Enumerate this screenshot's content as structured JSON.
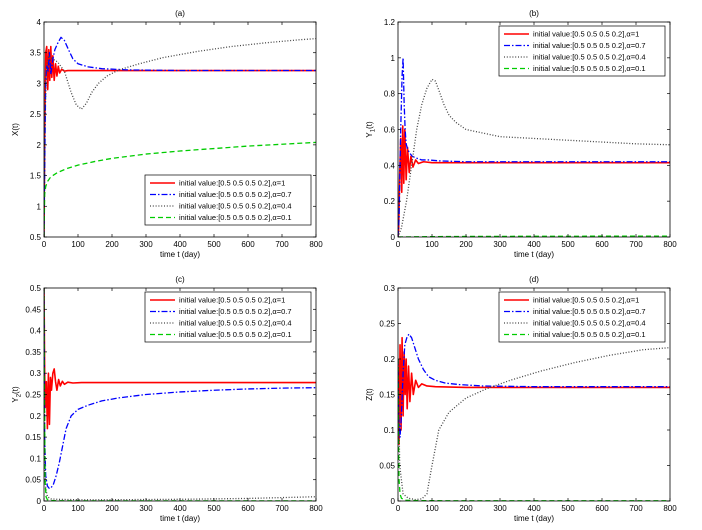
{
  "chart_data": [
    {
      "type": "line",
      "title": "(a)",
      "xlabel": "time t (day)",
      "ylabel": "X(t)",
      "xlim": [
        0,
        800
      ],
      "ylim": [
        0.5,
        4
      ],
      "xticks": [
        0,
        100,
        200,
        300,
        400,
        500,
        600,
        700,
        800
      ],
      "yticks": [
        0.5,
        1,
        1.5,
        2,
        2.5,
        3,
        3.5,
        4
      ],
      "legend_pos": "bottom-right",
      "series": [
        {
          "name": "initial value:[0.5 0.5 0.5 0.2],α=1",
          "color": "#ff0000",
          "style": "solid",
          "x": [
            0,
            2,
            5,
            8,
            11,
            14,
            17,
            20,
            23,
            26,
            30,
            34,
            38,
            42,
            46,
            52,
            60,
            70,
            90,
            120,
            200,
            800
          ],
          "y": [
            0.5,
            2.2,
            3.5,
            3.6,
            2.9,
            3.55,
            3.05,
            3.6,
            3.1,
            3.45,
            3.05,
            3.32,
            3.12,
            3.28,
            3.17,
            3.23,
            3.2,
            3.21,
            3.21,
            3.21,
            3.21,
            3.21
          ]
        },
        {
          "name": "initial value:[0.5 0.5 0.5 0.2],α=0.7",
          "color": "#0000ff",
          "style": "dashdot",
          "x": [
            0,
            2,
            5,
            8,
            12,
            16,
            20,
            26,
            32,
            40,
            50,
            60,
            72,
            85,
            100,
            130,
            170,
            250,
            400,
            600,
            800
          ],
          "y": [
            0.5,
            1.6,
            3.0,
            3.3,
            3.2,
            3.5,
            3.15,
            3.4,
            3.55,
            3.65,
            3.75,
            3.7,
            3.55,
            3.4,
            3.32,
            3.27,
            3.24,
            3.22,
            3.21,
            3.21,
            3.21
          ]
        },
        {
          "name": "initial value:[0.5 0.5 0.5 0.2],α=0.4",
          "color": "#444444",
          "style": "dotted",
          "x": [
            0,
            3,
            8,
            15,
            25,
            40,
            60,
            80,
            95,
            110,
            125,
            140,
            160,
            185,
            220,
            280,
            350,
            450,
            550,
            650,
            750,
            800
          ],
          "y": [
            0.5,
            2.5,
            3.3,
            3.45,
            3.4,
            3.35,
            3.2,
            2.85,
            2.65,
            2.58,
            2.68,
            2.85,
            3.0,
            3.12,
            3.22,
            3.32,
            3.42,
            3.52,
            3.6,
            3.66,
            3.71,
            3.73
          ]
        },
        {
          "name": "initial value:[0.5 0.5 0.5 0.2],α=0.1",
          "color": "#00cc00",
          "style": "dashed",
          "x": [
            0,
            2,
            5,
            10,
            20,
            40,
            70,
            100,
            150,
            200,
            300,
            400,
            500,
            600,
            700,
            800
          ],
          "y": [
            0.5,
            1.2,
            1.32,
            1.4,
            1.48,
            1.55,
            1.62,
            1.67,
            1.73,
            1.78,
            1.85,
            1.9,
            1.94,
            1.98,
            2.01,
            2.04
          ]
        }
      ]
    },
    {
      "type": "line",
      "title": "(b)",
      "xlabel": "time t (day)",
      "ylabel": "Y1(t)",
      "xlim": [
        0,
        800
      ],
      "ylim": [
        0,
        1.2
      ],
      "xticks": [
        0,
        100,
        200,
        300,
        400,
        500,
        600,
        700,
        800
      ],
      "yticks": [
        0,
        0.2,
        0.4,
        0.6,
        0.8,
        1,
        1.2
      ],
      "legend_pos": "top-right",
      "series": [
        {
          "name": "initial value:[0.5 0.5 0.5 0.2],α=1",
          "color": "#ff0000",
          "style": "solid",
          "x": [
            0,
            2,
            5,
            8,
            11,
            14,
            17,
            20,
            24,
            28,
            33,
            38,
            44,
            52,
            60,
            75,
            100,
            150,
            800
          ],
          "y": [
            0,
            0.05,
            0.35,
            0.55,
            0.25,
            0.62,
            0.3,
            0.6,
            0.32,
            0.5,
            0.36,
            0.45,
            0.39,
            0.43,
            0.41,
            0.42,
            0.415,
            0.415,
            0.415
          ]
        },
        {
          "name": "initial value:[0.5 0.5 0.5 0.2],α=0.7",
          "color": "#0000ff",
          "style": "dashdot",
          "x": [
            0,
            3,
            8,
            12,
            15,
            18,
            21,
            24,
            28,
            34,
            42,
            55,
            70,
            90,
            120,
            200,
            400,
            800
          ],
          "y": [
            0,
            0.1,
            0.6,
            0.9,
            1.0,
            0.75,
            0.6,
            0.52,
            0.49,
            0.47,
            0.45,
            0.44,
            0.43,
            0.43,
            0.425,
            0.42,
            0.42,
            0.42
          ]
        },
        {
          "name": "initial value:[0.5 0.5 0.5 0.2],α=0.4",
          "color": "#444444",
          "style": "dotted",
          "x": [
            0,
            10,
            25,
            40,
            55,
            70,
            85,
            100,
            110,
            120,
            135,
            150,
            170,
            200,
            250,
            300,
            400,
            500,
            600,
            700,
            800
          ],
          "y": [
            0,
            0.05,
            0.2,
            0.4,
            0.6,
            0.74,
            0.83,
            0.88,
            0.87,
            0.82,
            0.74,
            0.68,
            0.64,
            0.6,
            0.58,
            0.56,
            0.55,
            0.54,
            0.53,
            0.52,
            0.515
          ]
        },
        {
          "name": "initial value:[0.5 0.5 0.5 0.2],α=0.1",
          "color": "#00cc00",
          "style": "dashed",
          "x": [
            0,
            100,
            200,
            400,
            800
          ],
          "y": [
            0,
            0.002,
            0.003,
            0.004,
            0.005
          ]
        }
      ]
    },
    {
      "type": "line",
      "title": "(c)",
      "xlabel": "time t (day)",
      "ylabel": "Y2(t)",
      "xlim": [
        0,
        800
      ],
      "ylim": [
        0,
        0.5
      ],
      "xticks": [
        0,
        100,
        200,
        300,
        400,
        500,
        600,
        700,
        800
      ],
      "yticks": [
        0,
        0.05,
        0.1,
        0.15,
        0.2,
        0.25,
        0.3,
        0.35,
        0.4,
        0.45,
        0.5
      ],
      "legend_pos": "top-right",
      "series": [
        {
          "name": "initial value:[0.5 0.5 0.5 0.2],α=1",
          "color": "#ff0000",
          "style": "solid",
          "x": [
            0,
            2,
            4,
            7,
            10,
            13,
            16,
            19,
            22,
            26,
            30,
            34,
            38,
            43,
            48,
            54,
            60,
            70,
            85,
            110,
            200,
            800
          ],
          "y": [
            0.5,
            0.3,
            0.22,
            0.28,
            0.17,
            0.3,
            0.18,
            0.29,
            0.26,
            0.3,
            0.31,
            0.28,
            0.26,
            0.285,
            0.27,
            0.281,
            0.274,
            0.279,
            0.277,
            0.278,
            0.278,
            0.278
          ]
        },
        {
          "name": "initial value:[0.5 0.5 0.5 0.2],α=0.7",
          "color": "#0000ff",
          "style": "dashdot",
          "x": [
            0,
            2,
            5,
            10,
            15,
            20,
            28,
            36,
            45,
            55,
            65,
            80,
            100,
            130,
            170,
            220,
            300,
            400,
            500,
            600,
            700,
            800
          ],
          "y": [
            0.5,
            0.15,
            0.06,
            0.035,
            0.03,
            0.03,
            0.04,
            0.06,
            0.09,
            0.13,
            0.17,
            0.2,
            0.215,
            0.225,
            0.235,
            0.242,
            0.25,
            0.256,
            0.26,
            0.263,
            0.265,
            0.266
          ]
        },
        {
          "name": "initial value:[0.5 0.5 0.5 0.2],α=0.4",
          "color": "#444444",
          "style": "dotted",
          "x": [
            0,
            2,
            5,
            10,
            20,
            40,
            100,
            200,
            400,
            600,
            800
          ],
          "y": [
            0.5,
            0.1,
            0.03,
            0.01,
            0.005,
            0.004,
            0.003,
            0.003,
            0.004,
            0.006,
            0.01
          ]
        },
        {
          "name": "initial value:[0.5 0.5 0.5 0.2],α=0.1",
          "color": "#00cc00",
          "style": "dashed",
          "x": [
            0,
            1,
            3,
            6,
            10,
            20,
            40,
            100,
            300,
            800
          ],
          "y": [
            0.5,
            0.3,
            0.05,
            0.01,
            0.003,
            0.001,
            0.0005,
            0.0003,
            0.0002,
            0.0002
          ]
        }
      ]
    },
    {
      "type": "line",
      "title": "(d)",
      "xlabel": "time t (day)",
      "ylabel": "Z(t)",
      "xlim": [
        0,
        800
      ],
      "ylim": [
        0,
        0.3
      ],
      "xticks": [
        0,
        100,
        200,
        300,
        400,
        500,
        600,
        700,
        800
      ],
      "yticks": [
        0,
        0.05,
        0.1,
        0.15,
        0.2,
        0.25,
        0.3
      ],
      "legend_pos": "top-right",
      "series": [
        {
          "name": "initial value:[0.5 0.5 0.5 0.2],α=1",
          "color": "#ff0000",
          "style": "solid",
          "x": [
            0,
            3,
            6,
            9,
            12,
            15,
            18,
            21,
            24,
            27,
            31,
            35,
            40,
            45,
            52,
            60,
            70,
            85,
            110,
            200,
            800
          ],
          "y": [
            0.2,
            0.08,
            0.22,
            0.1,
            0.23,
            0.12,
            0.21,
            0.15,
            0.2,
            0.13,
            0.19,
            0.14,
            0.18,
            0.15,
            0.17,
            0.16,
            0.165,
            0.162,
            0.161,
            0.16,
            0.16
          ]
        },
        {
          "name": "initial value:[0.5 0.5 0.5 0.2],α=0.7",
          "color": "#0000ff",
          "style": "dashdot",
          "x": [
            0,
            2,
            6,
            10,
            15,
            20,
            26,
            32,
            40,
            50,
            60,
            75,
            90,
            110,
            140,
            180,
            250,
            400,
            800
          ],
          "y": [
            0.2,
            0.12,
            0.09,
            0.12,
            0.18,
            0.22,
            0.23,
            0.235,
            0.23,
            0.215,
            0.2,
            0.185,
            0.175,
            0.17,
            0.166,
            0.164,
            0.162,
            0.161,
            0.161
          ]
        },
        {
          "name": "initial value:[0.5 0.5 0.5 0.2],α=0.4",
          "color": "#444444",
          "style": "dotted",
          "x": [
            0,
            5,
            15,
            30,
            50,
            70,
            85,
            100,
            120,
            150,
            200,
            260,
            330,
            420,
            520,
            620,
            720,
            800
          ],
          "y": [
            0.2,
            0.05,
            0.01,
            0.004,
            0.002,
            0.003,
            0.01,
            0.05,
            0.1,
            0.125,
            0.145,
            0.158,
            0.17,
            0.183,
            0.195,
            0.205,
            0.213,
            0.216
          ]
        },
        {
          "name": "initial value:[0.5 0.5 0.5 0.2],α=0.1",
          "color": "#00cc00",
          "style": "dashed",
          "x": [
            0,
            1,
            3,
            6,
            10,
            20,
            60,
            200,
            800
          ],
          "y": [
            0.2,
            0.1,
            0.03,
            0.01,
            0.004,
            0.001,
            0.0005,
            0.0003,
            0.0003
          ]
        }
      ]
    }
  ]
}
